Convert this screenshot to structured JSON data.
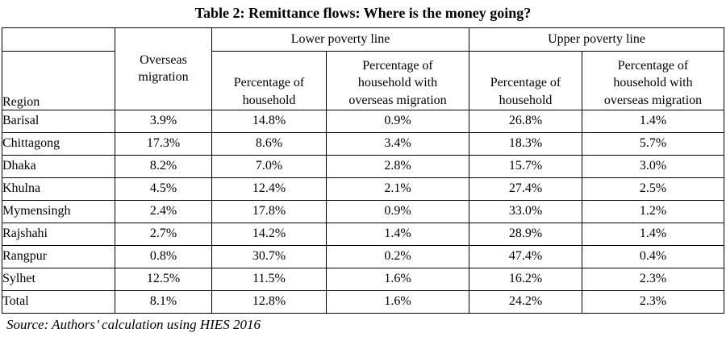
{
  "title": "Table 2: Remittance flows: Where is the money going?",
  "table": {
    "header": {
      "region_label": "Region",
      "overseas_migration_label": "Overseas\nmigration",
      "lower_group_label": "Lower poverty line",
      "upper_group_label": "Upper poverty line",
      "pct_household_label": "Percentage of\nhousehold",
      "pct_household_migration_label": "Percentage of\nhousehold with\noverseas migration"
    },
    "rows": [
      {
        "region": "Barisal",
        "overseas_migration": "3.9%",
        "lower_pct_household": "14.8%",
        "lower_pct_household_migration": "0.9%",
        "upper_pct_household": "26.8%",
        "upper_pct_household_migration": "1.4%"
      },
      {
        "region": "Chittagong",
        "overseas_migration": "17.3%",
        "lower_pct_household": "8.6%",
        "lower_pct_household_migration": "3.4%",
        "upper_pct_household": "18.3%",
        "upper_pct_household_migration": "5.7%"
      },
      {
        "region": "Dhaka",
        "overseas_migration": "8.2%",
        "lower_pct_household": "7.0%",
        "lower_pct_household_migration": "2.8%",
        "upper_pct_household": "15.7%",
        "upper_pct_household_migration": "3.0%"
      },
      {
        "region": "Khulna",
        "overseas_migration": "4.5%",
        "lower_pct_household": "12.4%",
        "lower_pct_household_migration": "2.1%",
        "upper_pct_household": "27.4%",
        "upper_pct_household_migration": "2.5%"
      },
      {
        "region": "Mymensingh",
        "overseas_migration": "2.4%",
        "lower_pct_household": "17.8%",
        "lower_pct_household_migration": "0.9%",
        "upper_pct_household": "33.0%",
        "upper_pct_household_migration": "1.2%"
      },
      {
        "region": "Rajshahi",
        "overseas_migration": "2.7%",
        "lower_pct_household": "14.2%",
        "lower_pct_household_migration": "1.4%",
        "upper_pct_household": "28.9%",
        "upper_pct_household_migration": "1.4%"
      },
      {
        "region": "Rangpur",
        "overseas_migration": "0.8%",
        "lower_pct_household": "30.7%",
        "lower_pct_household_migration": "0.2%",
        "upper_pct_household": "47.4%",
        "upper_pct_household_migration": "0.4%"
      },
      {
        "region": "Sylhet",
        "overseas_migration": "12.5%",
        "lower_pct_household": "11.5%",
        "lower_pct_household_migration": "1.6%",
        "upper_pct_household": "16.2%",
        "upper_pct_household_migration": "2.3%"
      },
      {
        "region": "Total",
        "overseas_migration": "8.1%",
        "lower_pct_household": "12.8%",
        "lower_pct_household_migration": "1.6%",
        "upper_pct_household": "24.2%",
        "upper_pct_household_migration": "2.3%"
      }
    ]
  },
  "source_note": "Source: Authors’ calculation using HIES 2016",
  "colors": {
    "border": "#000000",
    "text": "#000000",
    "background": "#ffffff"
  }
}
